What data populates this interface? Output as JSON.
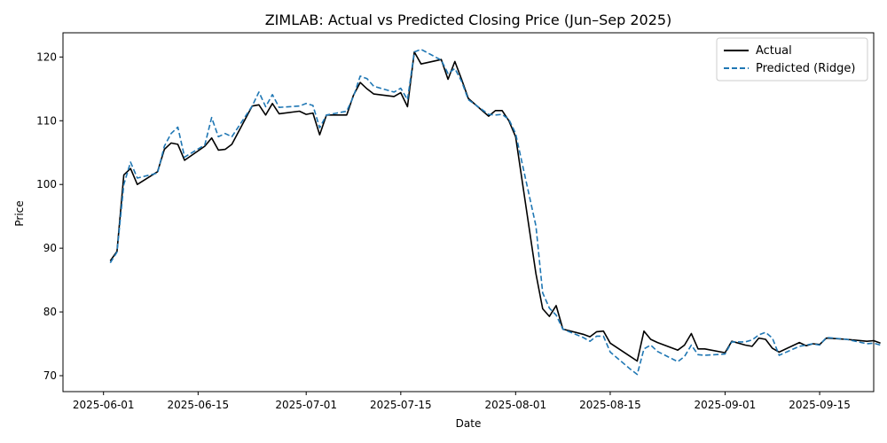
{
  "chart_data": {
    "type": "line",
    "title": "ZIMLAB: Actual vs Predicted Closing Price (Jun–Sep 2025)",
    "xlabel": "Date",
    "ylabel": "Price",
    "x_tick_labels": [
      "2025-06-01",
      "2025-06-15",
      "2025-07-01",
      "2025-07-15",
      "2025-08-01",
      "2025-08-15",
      "2025-09-01",
      "2025-09-15"
    ],
    "y_ticks": [
      70,
      80,
      90,
      100,
      110,
      120
    ],
    "ylim": [
      67.5,
      123.8
    ],
    "xlim": [
      "2025-05-26",
      "2025-09-23"
    ],
    "grid": false,
    "legend_position": "top-right",
    "series": [
      {
        "name": "Actual",
        "color": "#000000",
        "style": "solid",
        "points": [
          [
            "2025-06-02",
            88.0
          ],
          [
            "2025-06-03",
            89.5
          ],
          [
            "2025-06-04",
            101.5
          ],
          [
            "2025-06-05",
            102.5
          ],
          [
            "2025-06-06",
            100.0
          ],
          [
            "2025-06-09",
            102.0
          ],
          [
            "2025-06-10",
            105.5
          ],
          [
            "2025-06-11",
            106.5
          ],
          [
            "2025-06-12",
            106.3
          ],
          [
            "2025-06-13",
            103.8
          ],
          [
            "2025-06-16",
            106.0
          ],
          [
            "2025-06-17",
            107.3
          ],
          [
            "2025-06-18",
            105.4
          ],
          [
            "2025-06-19",
            105.5
          ],
          [
            "2025-06-20",
            106.3
          ],
          [
            "2025-06-23",
            112.3
          ],
          [
            "2025-06-24",
            112.5
          ],
          [
            "2025-06-25",
            110.9
          ],
          [
            "2025-06-26",
            112.7
          ],
          [
            "2025-06-27",
            111.1
          ],
          [
            "2025-06-30",
            111.5
          ],
          [
            "2025-07-01",
            111.0
          ],
          [
            "2025-07-02",
            111.2
          ],
          [
            "2025-07-03",
            107.8
          ],
          [
            "2025-07-04",
            110.9
          ],
          [
            "2025-07-07",
            110.9
          ],
          [
            "2025-07-08",
            114.0
          ],
          [
            "2025-07-09",
            116.0
          ],
          [
            "2025-07-10",
            115.0
          ],
          [
            "2025-07-11",
            114.2
          ],
          [
            "2025-07-14",
            113.8
          ],
          [
            "2025-07-15",
            114.4
          ],
          [
            "2025-07-16",
            112.2
          ],
          [
            "2025-07-17",
            120.8
          ],
          [
            "2025-07-18",
            118.9
          ],
          [
            "2025-07-21",
            119.6
          ],
          [
            "2025-07-22",
            116.5
          ],
          [
            "2025-07-23",
            119.3
          ],
          [
            "2025-07-24",
            116.5
          ],
          [
            "2025-07-25",
            113.5
          ],
          [
            "2025-07-28",
            110.7
          ],
          [
            "2025-07-29",
            111.6
          ],
          [
            "2025-07-30",
            111.6
          ],
          [
            "2025-07-31",
            110.0
          ],
          [
            "2025-08-01",
            107.5
          ],
          [
            "2025-08-04",
            86.0
          ],
          [
            "2025-08-05",
            80.5
          ],
          [
            "2025-08-06",
            79.3
          ],
          [
            "2025-08-07",
            81.0
          ],
          [
            "2025-08-08",
            77.3
          ],
          [
            "2025-08-11",
            76.5
          ],
          [
            "2025-08-12",
            76.1
          ],
          [
            "2025-08-13",
            76.9
          ],
          [
            "2025-08-14",
            77.0
          ],
          [
            "2025-08-15",
            75.1
          ],
          [
            "2025-08-18",
            73.0
          ],
          [
            "2025-08-19",
            72.3
          ],
          [
            "2025-08-20",
            77.0
          ],
          [
            "2025-08-21",
            75.7
          ],
          [
            "2025-08-22",
            75.2
          ],
          [
            "2025-08-25",
            74.0
          ],
          [
            "2025-08-26",
            74.8
          ],
          [
            "2025-08-27",
            76.6
          ],
          [
            "2025-08-28",
            74.2
          ],
          [
            "2025-08-29",
            74.2
          ],
          [
            "2025-09-01",
            73.6
          ],
          [
            "2025-09-02",
            75.4
          ],
          [
            "2025-09-04",
            74.8
          ],
          [
            "2025-09-05",
            74.6
          ],
          [
            "2025-09-06",
            75.9
          ],
          [
            "2025-09-07",
            75.7
          ],
          [
            "2025-09-08",
            74.3
          ],
          [
            "2025-09-09",
            73.7
          ],
          [
            "2025-09-12",
            75.2
          ],
          [
            "2025-09-13",
            74.7
          ],
          [
            "2025-09-14",
            75.0
          ],
          [
            "2025-09-15",
            74.9
          ],
          [
            "2025-09-16",
            75.9
          ],
          [
            "2025-09-19",
            75.7
          ],
          [
            "2025-09-22",
            75.4
          ],
          [
            "2025-09-23",
            75.5
          ],
          [
            "2025-09-24",
            75.1
          ]
        ]
      },
      {
        "name": "Predicted (Ridge)",
        "color": "#1f77b4",
        "style": "dashed",
        "points": [
          [
            "2025-06-02",
            87.7
          ],
          [
            "2025-06-03",
            89.4
          ],
          [
            "2025-06-04",
            100.0
          ],
          [
            "2025-06-05",
            103.5
          ],
          [
            "2025-06-06",
            101.0
          ],
          [
            "2025-06-09",
            101.8
          ],
          [
            "2025-06-10",
            106.0
          ],
          [
            "2025-06-11",
            108.0
          ],
          [
            "2025-06-12",
            109.0
          ],
          [
            "2025-06-13",
            104.3
          ],
          [
            "2025-06-16",
            106.2
          ],
          [
            "2025-06-17",
            110.5
          ],
          [
            "2025-06-18",
            107.5
          ],
          [
            "2025-06-19",
            108.0
          ],
          [
            "2025-06-20",
            107.5
          ],
          [
            "2025-06-23",
            112.3
          ],
          [
            "2025-06-24",
            114.5
          ],
          [
            "2025-06-25",
            112.2
          ],
          [
            "2025-06-26",
            114.1
          ],
          [
            "2025-06-27",
            112.1
          ],
          [
            "2025-06-30",
            112.3
          ],
          [
            "2025-07-01",
            112.7
          ],
          [
            "2025-07-02",
            112.4
          ],
          [
            "2025-07-03",
            108.9
          ],
          [
            "2025-07-04",
            110.9
          ],
          [
            "2025-07-07",
            111.5
          ],
          [
            "2025-07-08",
            113.8
          ],
          [
            "2025-07-09",
            117.0
          ],
          [
            "2025-07-10",
            116.6
          ],
          [
            "2025-07-11",
            115.4
          ],
          [
            "2025-07-14",
            114.5
          ],
          [
            "2025-07-15",
            115.1
          ],
          [
            "2025-07-16",
            113.3
          ],
          [
            "2025-07-17",
            120.8
          ],
          [
            "2025-07-18",
            121.2
          ],
          [
            "2025-07-21",
            119.5
          ],
          [
            "2025-07-22",
            117.4
          ],
          [
            "2025-07-23",
            118.2
          ],
          [
            "2025-07-24",
            116.2
          ],
          [
            "2025-07-25",
            113.3
          ],
          [
            "2025-07-28",
            111.0
          ],
          [
            "2025-07-29",
            110.9
          ],
          [
            "2025-07-30",
            111.0
          ],
          [
            "2025-07-31",
            110.2
          ],
          [
            "2025-08-01",
            108.0
          ],
          [
            "2025-08-04",
            93.5
          ],
          [
            "2025-08-05",
            83.0
          ],
          [
            "2025-08-06",
            80.6
          ],
          [
            "2025-08-07",
            79.5
          ],
          [
            "2025-08-08",
            77.3
          ],
          [
            "2025-08-11",
            76.0
          ],
          [
            "2025-08-12",
            75.4
          ],
          [
            "2025-08-13",
            76.2
          ],
          [
            "2025-08-14",
            76.2
          ],
          [
            "2025-08-15",
            73.7
          ],
          [
            "2025-08-18",
            71.0
          ],
          [
            "2025-08-19",
            70.2
          ],
          [
            "2025-08-20",
            74.2
          ],
          [
            "2025-08-21",
            74.8
          ],
          [
            "2025-08-22",
            73.8
          ],
          [
            "2025-08-25",
            72.2
          ],
          [
            "2025-08-26",
            73.0
          ],
          [
            "2025-08-27",
            74.8
          ],
          [
            "2025-08-28",
            73.3
          ],
          [
            "2025-08-29",
            73.2
          ],
          [
            "2025-09-01",
            73.4
          ],
          [
            "2025-09-02",
            75.3
          ],
          [
            "2025-09-04",
            75.3
          ],
          [
            "2025-09-05",
            75.6
          ],
          [
            "2025-09-06",
            76.4
          ],
          [
            "2025-09-07",
            76.8
          ],
          [
            "2025-09-08",
            75.9
          ],
          [
            "2025-09-09",
            73.2
          ],
          [
            "2025-09-12",
            74.6
          ],
          [
            "2025-09-13",
            74.8
          ],
          [
            "2025-09-14",
            75.0
          ],
          [
            "2025-09-15",
            74.8
          ],
          [
            "2025-09-16",
            76.0
          ],
          [
            "2025-09-19",
            75.7
          ],
          [
            "2025-09-22",
            75.0
          ],
          [
            "2025-09-23",
            75.1
          ],
          [
            "2025-09-24",
            74.8
          ]
        ]
      }
    ]
  }
}
